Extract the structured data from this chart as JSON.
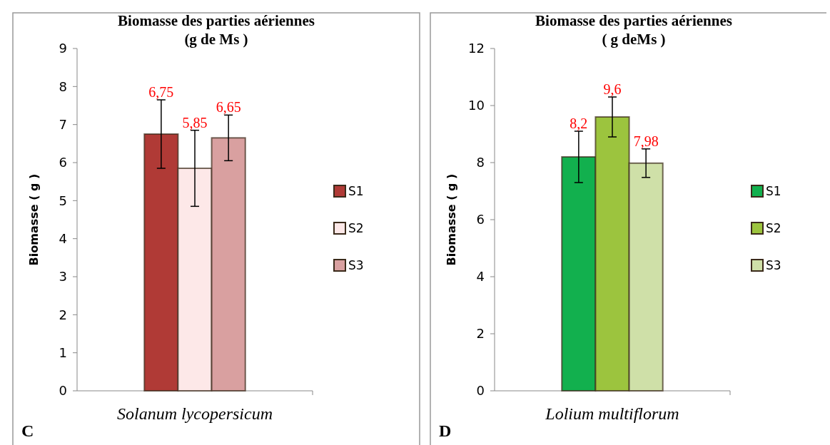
{
  "chart_data": [
    {
      "type": "bar",
      "title": "Biomasse des parties aériennes",
      "subtitle": "(g de Ms )",
      "ylabel": "Biomasse ( g )",
      "categories": [
        "Solanum lycopersicum"
      ],
      "ylim": [
        0,
        9
      ],
      "yticks": [
        0,
        1,
        2,
        3,
        4,
        5,
        6,
        7,
        8,
        9
      ],
      "grid": false,
      "legend": "right",
      "annotations": [
        "C"
      ],
      "series": [
        {
          "name": "S1",
          "color": "#b03a36",
          "values": [
            6.75
          ],
          "errors": [
            0.9
          ],
          "value_labels": [
            "6,75"
          ]
        },
        {
          "name": "S2",
          "color": "#fde8e8",
          "values": [
            5.85
          ],
          "errors": [
            1.0
          ],
          "value_labels": [
            "5,85"
          ]
        },
        {
          "name": "S3",
          "color": "#d9a0a0",
          "values": [
            6.65
          ],
          "errors": [
            0.6
          ],
          "value_labels": [
            "6,65"
          ]
        }
      ]
    },
    {
      "type": "bar",
      "title": "Biomasse des parties aériennes",
      "subtitle": "( g deMs )",
      "ylabel": "Biomasse ( g )",
      "categories": [
        "Lolium  multiflorum"
      ],
      "ylim": [
        0,
        12
      ],
      "yticks": [
        0,
        2,
        4,
        6,
        8,
        10,
        12
      ],
      "grid": false,
      "legend": "right",
      "annotations": [
        "D"
      ],
      "series": [
        {
          "name": "S1",
          "color": "#12b04e",
          "values": [
            8.2
          ],
          "errors": [
            0.9
          ],
          "value_labels": [
            "8,2"
          ]
        },
        {
          "name": "S2",
          "color": "#9cc43e",
          "values": [
            9.6
          ],
          "errors": [
            0.7
          ],
          "value_labels": [
            "9,6"
          ]
        },
        {
          "name": "S3",
          "color": "#cfe0a8",
          "values": [
            7.98
          ],
          "errors": [
            0.5
          ],
          "value_labels": [
            "7,98"
          ]
        }
      ]
    }
  ]
}
